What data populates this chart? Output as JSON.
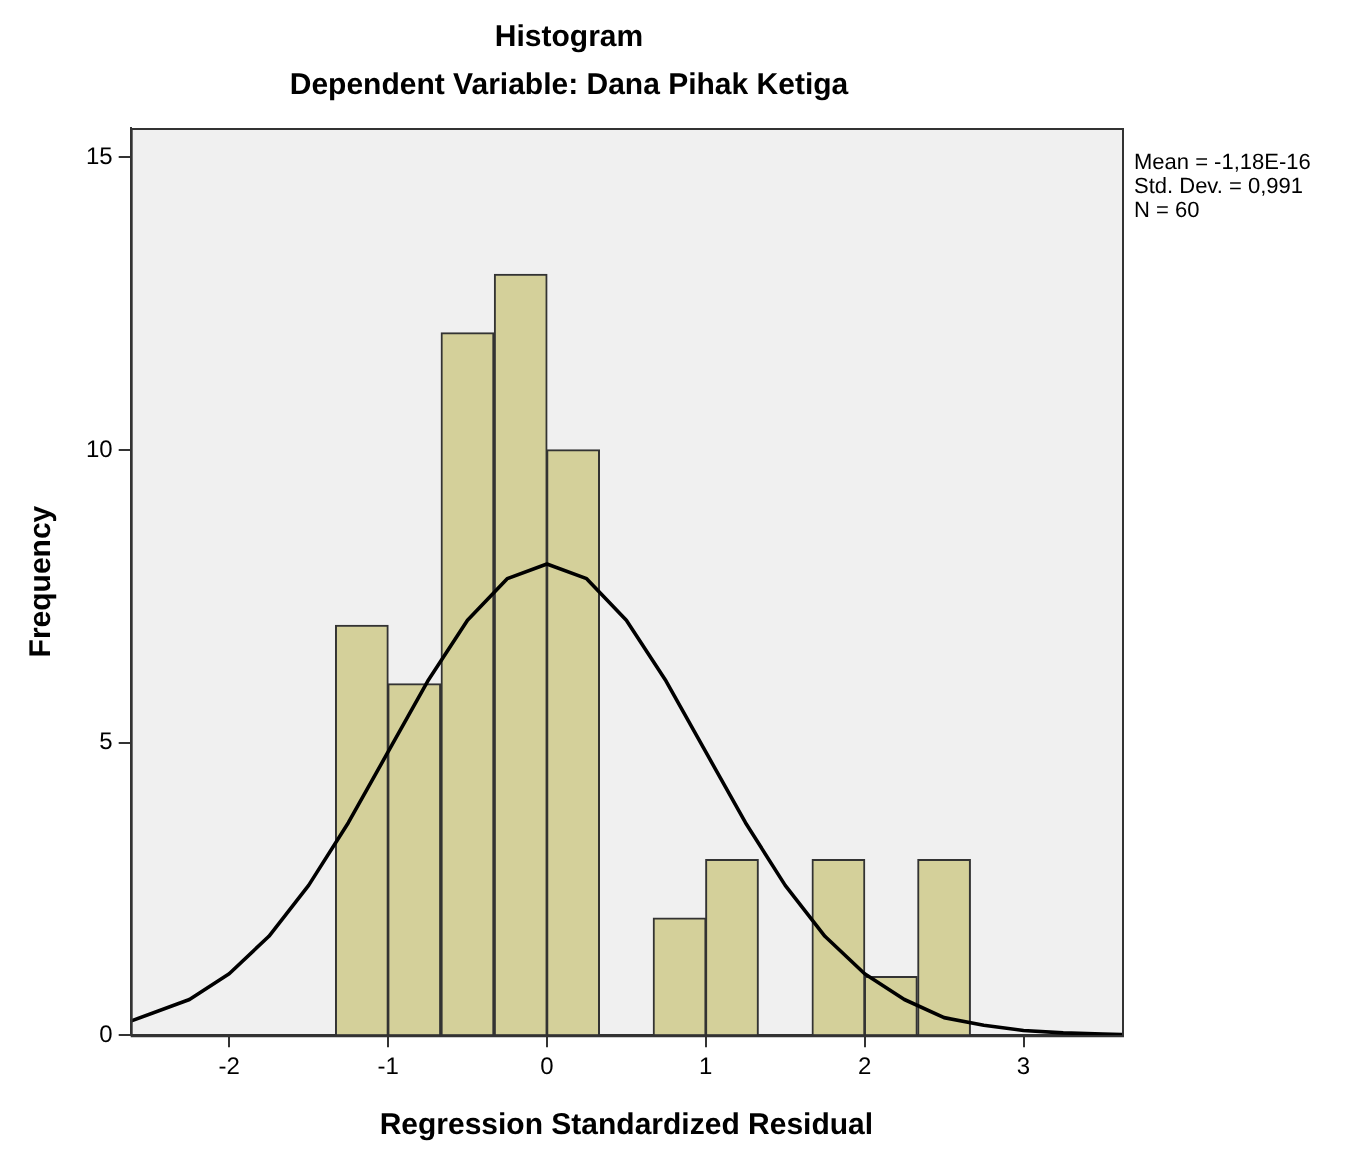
{
  "chart_data": {
    "type": "histogram",
    "title": "Histogram",
    "subtitle": "Dependent Variable: Dana Pihak Ketiga",
    "xlabel": "Regression Standardized Residual",
    "ylabel": "Frequency",
    "bins": [
      -1.33,
      -1,
      -0.67,
      -0.33,
      0,
      0.33,
      0.67,
      1,
      1.33,
      1.67,
      2,
      2.33,
      2.67
    ],
    "values": [
      7,
      6,
      12,
      13,
      10,
      0,
      2,
      3,
      0,
      3,
      1,
      3
    ],
    "color": "#d4d09a",
    "series": [
      {
        "type": "line",
        "color": "#000000",
        "x": [
          -2.62,
          -2.25,
          -2,
          -1.75,
          -1.5,
          -1.25,
          -1,
          -0.75,
          -0.5,
          -0.25,
          0,
          0.25,
          0.5,
          0.75,
          1,
          1.25,
          1.5,
          1.75,
          2,
          2.25,
          2.5,
          2.75,
          3,
          3.25,
          3.5,
          3.62
        ],
        "values": [
          0.24,
          0.61,
          1.05,
          1.69,
          2.56,
          3.63,
          4.84,
          6.05,
          7.09,
          7.8,
          8.05,
          7.8,
          7.09,
          6.05,
          4.84,
          3.63,
          2.56,
          1.69,
          1.05,
          0.61,
          0.3,
          0.17,
          0.08,
          0.04,
          0.02,
          0.01
        ]
      }
    ],
    "xlim": [
      -2.62,
      3.62
    ],
    "xticks": [
      -2,
      -1,
      0,
      1,
      2,
      3
    ],
    "ylim": [
      0,
      15.5
    ],
    "yticks": [
      0,
      5,
      10,
      15
    ],
    "grid": false,
    "legend": false,
    "marker": "none",
    "annotations": [
      "Mean = -1,18E-16",
      "Std. Dev. = 0,991",
      "N = 60"
    ]
  }
}
